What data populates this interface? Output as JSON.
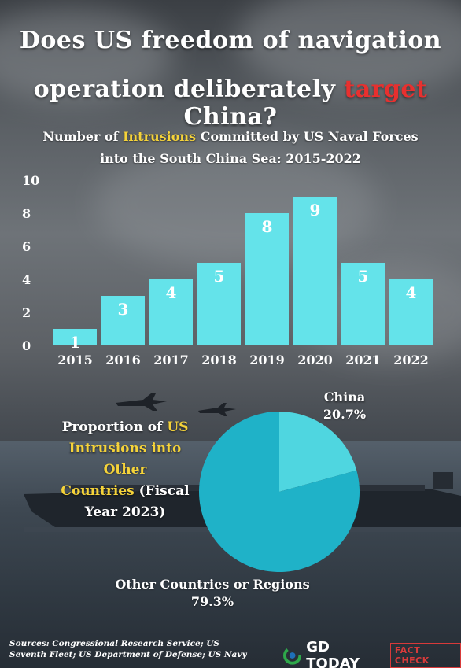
{
  "title": {
    "line1": "Does US freedom of navigation",
    "line2_before": "operation deliberately ",
    "line2_accent": "target",
    "line2_after": " China?"
  },
  "bar_subtitle": {
    "part1": "Number of ",
    "highlight": "Intrusions",
    "part2": " Committed by US Naval Forces",
    "line2": "into the South China Sea: 2015-2022"
  },
  "pie_title": {
    "line1_before": "Proportion of ",
    "line1_highlight": "US",
    "line2_highlight": "Intrusions into Other",
    "line3_highlight": "Countries",
    "line3_after": " (Fiscal",
    "line4": "Year 2023)"
  },
  "pie_labels": {
    "china_name": "China",
    "china_value": "20.7%",
    "other_name": "Other Countries or Regions",
    "other_value": "79.3%"
  },
  "sources": {
    "line1": "Sources: Congressional Research Service; US",
    "line2": "Seventh Fleet; US Department of Defense; US Navy"
  },
  "brand": {
    "name": "GD TODAY",
    "tag": "FACT CHECK"
  },
  "colors": {
    "bar": "#64e3ea",
    "pie_main": "#1fb2c8",
    "pie_slice": "#4fd6e0",
    "accent_red": "#e8302f",
    "highlight_yellow": "#f5d33a"
  },
  "chart_data": [
    {
      "type": "bar",
      "title": "Number of Intrusions Committed by US Naval Forces into the South China Sea: 2015-2022",
      "categories": [
        "2015",
        "2016",
        "2017",
        "2018",
        "2019",
        "2020",
        "2021",
        "2022"
      ],
      "values": [
        1,
        3,
        4,
        5,
        8,
        9,
        5,
        4
      ],
      "y_ticks": [
        "0",
        "2",
        "4",
        "6",
        "8",
        "10"
      ],
      "ylim": [
        0,
        10
      ],
      "grid": false,
      "data_labels": true
    },
    {
      "type": "pie",
      "title": "Proportion of US Intrusions into Other Countries (Fiscal Year 2023)",
      "slices": [
        {
          "name": "China",
          "value": 20.7
        },
        {
          "name": "Other Countries or Regions",
          "value": 79.3
        }
      ]
    }
  ]
}
